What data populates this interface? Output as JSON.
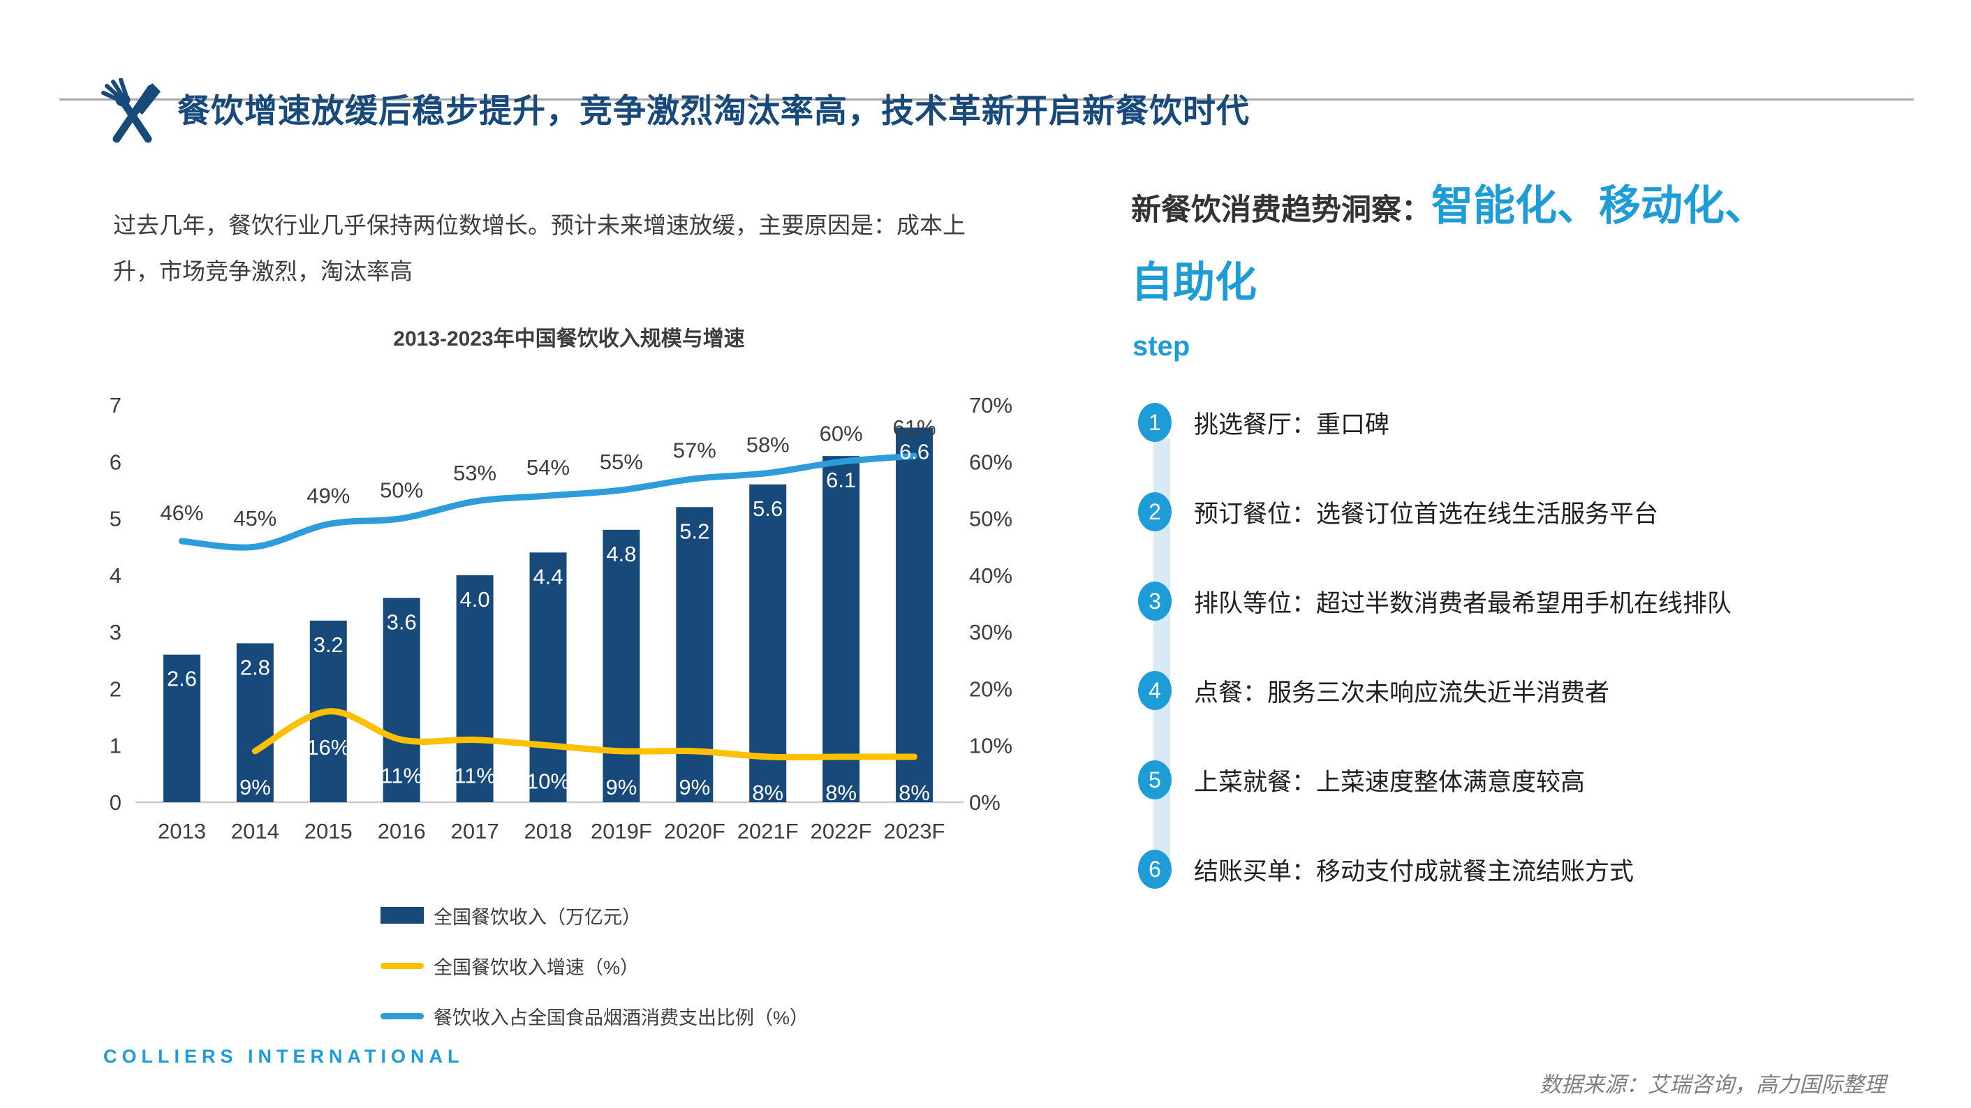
{
  "header": {
    "title": "餐饮增速放缓后稳步提升，竞争激烈淘汰率高，技术革新开启新餐饮时代",
    "icon": "fork-knife-icon"
  },
  "intro": {
    "text": "过去几年，餐饮行业几乎保持两位数增长。预计未来增速放缓，主要原因是：成本上升，市场竞争激烈，淘汰率高"
  },
  "chart_data": {
    "type": "bar+line combo",
    "title": "2013-2023年中国餐饮收入规模与增速",
    "categories": [
      "2013",
      "2014",
      "2015",
      "2016",
      "2017",
      "2018",
      "2019F",
      "2020F",
      "2021F",
      "2022F",
      "2023F"
    ],
    "series": [
      {
        "name": "全国餐饮收入（万亿元）",
        "type": "bar",
        "axis": "left",
        "color": "#17497B",
        "values": [
          2.6,
          2.8,
          3.2,
          3.6,
          4.0,
          4.4,
          4.8,
          5.2,
          5.6,
          6.1,
          6.6
        ],
        "labels": [
          "2.6",
          "2.8",
          "3.2",
          "3.6",
          "4.0",
          "4.4",
          "4.8",
          "5.2",
          "5.6",
          "6.1",
          "6.6"
        ]
      },
      {
        "name": "全国餐饮收入增速（%）",
        "type": "line",
        "axis": "right",
        "color": "#FFC000",
        "label_color": "#ffffff",
        "label_position": "below",
        "values": [
          null,
          9,
          16,
          11,
          11,
          10,
          9,
          9,
          8,
          8,
          8
        ],
        "labels": [
          "",
          "9%",
          "16%",
          "11%",
          "11%",
          "10%",
          "9%",
          "9%",
          "8%",
          "8%",
          "8%"
        ]
      },
      {
        "name": "餐饮收入占全国食品烟酒消费支出比例（%）",
        "type": "line",
        "axis": "right",
        "color": "#2D9CDB",
        "label_color": "#3d3d3d",
        "label_position": "above",
        "values": [
          46,
          45,
          49,
          50,
          53,
          54,
          55,
          57,
          58,
          60,
          61
        ],
        "labels": [
          "46%",
          "45%",
          "49%",
          "50%",
          "53%",
          "54%",
          "55%",
          "57%",
          "58%",
          "60%",
          "61%"
        ]
      }
    ],
    "left_axis": {
      "min": 0,
      "max": 7,
      "ticks": [
        0,
        1,
        2,
        3,
        4,
        5,
        6,
        7
      ]
    },
    "right_axis": {
      "min": 0,
      "max": 70,
      "ticks": [
        "0%",
        "10%",
        "20%",
        "30%",
        "40%",
        "50%",
        "60%",
        "70%"
      ]
    },
    "grid": false,
    "legend_position": "bottom-left"
  },
  "insight": {
    "heading_prefix": "新餐饮消费趋势洞察：",
    "heading_highlight": "智能化、移动化、自助化",
    "step_label": "step",
    "steps": [
      {
        "num": "1",
        "text": "挑选餐厅：重口碑"
      },
      {
        "num": "2",
        "text": "预订餐位：选餐订位首选在线生活服务平台"
      },
      {
        "num": "3",
        "text": "排队等位：超过半数消费者最希望用手机在线排队"
      },
      {
        "num": "4",
        "text": "点餐：服务三次未响应流失近半消费者"
      },
      {
        "num": "5",
        "text": "上菜就餐：上菜速度整体满意度较高"
      },
      {
        "num": "6",
        "text": "结账买单：移动支付成就餐主流结账方式"
      }
    ]
  },
  "footer": {
    "brand": "COLLIERS INTERNATIONAL",
    "source": "数据来源：艾瑞咨询，高力国际整理"
  },
  "colors": {
    "navy": "#17497B",
    "accent_blue": "#1E9CD8",
    "growth_yellow": "#FFC000",
    "ratio_blue": "#2D9CDB",
    "band_light_blue": "#D9E9F6"
  }
}
